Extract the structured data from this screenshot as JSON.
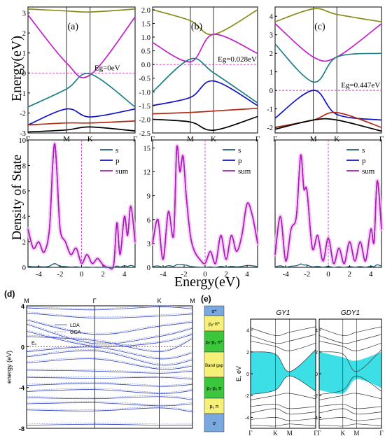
{
  "figure": {
    "ylabel_band": "Energy(eV)",
    "ylabel_dos": "Density of State",
    "xlabel_dos": "Energy(eV)"
  },
  "chart_data": [
    {
      "type": "line",
      "id": "a",
      "panel_label": "(a)",
      "kpoints": [
        "Γ",
        "M",
        "K",
        "Γ"
      ],
      "ylim": [
        -3,
        3.3
      ],
      "yticks": [
        "3",
        "2",
        "1",
        "0",
        "-1",
        "-2",
        "-3"
      ],
      "gap_label": "Eg=0eV",
      "series": [
        {
          "color": "#8b8b1a",
          "values": [
            3.2,
            3.1,
            3.05,
            3.2
          ]
        },
        {
          "color": "#c020c8",
          "values": [
            2.9,
            0.5,
            -0.1,
            2.8
          ]
        },
        {
          "color": "#1d7f86",
          "values": [
            -1.7,
            -0.8,
            -0.05,
            -1.7
          ]
        },
        {
          "color": "#1010c8",
          "values": [
            -2.6,
            -1.8,
            -2.2,
            -1.8
          ]
        },
        {
          "color": "#b02a10",
          "values": [
            -2.6,
            -2.5,
            -2.5,
            -2.4
          ]
        },
        {
          "color": "#000000",
          "values": [
            -2.95,
            -2.85,
            -2.7,
            -2.9
          ]
        }
      ]
    },
    {
      "type": "line",
      "id": "b",
      "panel_label": "(b)",
      "kpoints": [
        "Γ",
        "M",
        "K",
        "Γ"
      ],
      "ylim": [
        -2.5,
        2.1
      ],
      "yticks": [
        "2.0",
        "1.5",
        "1.0",
        "0.5",
        "0.0",
        "-0.5",
        "-1.0",
        "-1.5",
        "-2.0",
        "-2.5"
      ],
      "gap_label": "Eg=0.028eV",
      "series": [
        {
          "color": "#8b8b1a",
          "values": [
            2.0,
            1.6,
            1.1,
            2.0
          ]
        },
        {
          "color": "#c020c8",
          "values": [
            0.8,
            0.1,
            1.1,
            0.4
          ]
        },
        {
          "color": "#1d7f86",
          "values": [
            -1.0,
            0.2,
            -0.3,
            -1.4
          ]
        },
        {
          "color": "#1010c8",
          "values": [
            -1.5,
            -1.2,
            -0.6,
            -1.5
          ]
        },
        {
          "color": "#b02a10",
          "values": [
            -1.8,
            -1.75,
            -1.7,
            -1.6
          ]
        },
        {
          "color": "#000000",
          "values": [
            -2.0,
            -2.1,
            -2.4,
            -1.9
          ]
        }
      ]
    },
    {
      "type": "line",
      "id": "c",
      "panel_label": "(c)",
      "kpoints": [
        "Γ",
        "M",
        "K",
        "Γ"
      ],
      "ylim": [
        -2.3,
        4.5
      ],
      "yticks": [
        "4",
        "3",
        "2",
        "1",
        "0",
        "-1",
        "-2"
      ],
      "gap_label": "Eg=0.447eV",
      "series": [
        {
          "color": "#8b8b1a",
          "values": [
            3.7,
            4.4,
            4.1,
            3.7
          ]
        },
        {
          "color": "#c020c8",
          "values": [
            3.6,
            1.8,
            1.8,
            3.6
          ]
        },
        {
          "color": "#1d7f86",
          "values": [
            2.5,
            0.45,
            1.8,
            2.0
          ]
        },
        {
          "color": "#1010c8",
          "values": [
            -1.5,
            0.0,
            -1.3,
            -1.6
          ]
        },
        {
          "color": "#b02a10",
          "values": [
            -2.0,
            -1.6,
            -1.2,
            -2.0
          ]
        },
        {
          "color": "#000000",
          "values": [
            -2.1,
            -1.6,
            -1.6,
            -2.2
          ]
        }
      ]
    },
    {
      "type": "line",
      "id": "dos-a",
      "xlim": [
        -5,
        5
      ],
      "ylim": [
        0,
        10
      ],
      "xticks": [
        "-4",
        "-2",
        "0",
        "2",
        "4"
      ],
      "yticks": [
        "10",
        "8",
        "6",
        "4",
        "2",
        "0"
      ],
      "legend": [
        "s",
        "p",
        "sum"
      ],
      "x": [
        -5,
        -4.5,
        -4,
        -3.5,
        -3,
        -2.7,
        -2.5,
        -2.3,
        -2,
        -1.5,
        -1,
        -0.5,
        0,
        0.5,
        1,
        1.5,
        2,
        2.5,
        3,
        3.3,
        3.6,
        4,
        4.3,
        4.6,
        5
      ],
      "sum": [
        3.0,
        1.5,
        2.0,
        1.2,
        3.0,
        8.0,
        9.7,
        7.5,
        3.0,
        2.0,
        1.0,
        1.5,
        0.3,
        1.0,
        0.3,
        0.7,
        0.2,
        0.0,
        0.2,
        3.5,
        1.0,
        4.0,
        2.5,
        4.8,
        2.0
      ]
    },
    {
      "type": "line",
      "id": "dos-b",
      "xlim": [
        -5,
        5
      ],
      "ylim": [
        0,
        16
      ],
      "xticks": [
        "-4",
        "-2",
        "0",
        "2",
        "4"
      ],
      "yticks": [
        "15",
        "12",
        "9",
        "6",
        "3",
        "0"
      ],
      "legend": [
        "s",
        "p",
        "sum"
      ],
      "x": [
        -5,
        -4.5,
        -4,
        -3.5,
        -3,
        -2.7,
        -2.4,
        -2.1,
        -1.8,
        -1.4,
        -1,
        -0.5,
        0,
        0.5,
        1,
        1.5,
        2,
        2.5,
        3,
        3.5,
        4,
        4.5,
        5
      ],
      "sum": [
        3.0,
        6.0,
        1.0,
        7.0,
        4.0,
        15.0,
        12.0,
        14.0,
        9.0,
        4.0,
        2.0,
        1.0,
        0.5,
        2.0,
        0.5,
        4.0,
        1.0,
        4.0,
        2.0,
        4.0,
        8.0,
        6.5,
        3.0
      ]
    },
    {
      "type": "line",
      "id": "dos-c",
      "xlim": [
        -5,
        5
      ],
      "ylim": [
        0,
        10
      ],
      "xticks": [
        "-4",
        "-2",
        "0",
        "2",
        "4"
      ],
      "yticks": [],
      "legend": [
        "s",
        "p",
        "sum"
      ],
      "x": [
        -5,
        -4.5,
        -4,
        -3.5,
        -3,
        -2.6,
        -2.3,
        -2,
        -1.5,
        -1,
        -0.5,
        0,
        0.5,
        1,
        1.5,
        2,
        2.5,
        3,
        3.5,
        4,
        4.3,
        4.6,
        5
      ],
      "sum": [
        1.0,
        4.0,
        0.5,
        3.0,
        4.0,
        8.8,
        6.2,
        6.0,
        1.5,
        2.5,
        0.5,
        2.3,
        0.3,
        1.5,
        0.3,
        2.0,
        0.5,
        2.0,
        0.5,
        3.0,
        2.0,
        6.8,
        3.0
      ]
    },
    {
      "type": "line",
      "id": "d",
      "panel_label": "(d)",
      "kpoints": [
        "M",
        "Γ",
        "K",
        "M"
      ],
      "ylim": [
        -8,
        4
      ],
      "yticks": [
        "4",
        "0",
        "-4",
        "-8"
      ],
      "ylabel": "energy (eV)",
      "legend": [
        "LDA",
        "GGA"
      ],
      "fermi_label": "Eₓ"
    },
    {
      "type": "diagram",
      "id": "e",
      "panel_label": "(e)",
      "levels": [
        "σ*",
        "pᵧ-π*",
        "pₓ-pᵧ π*",
        "Band gap",
        "pₓ-pᵧ π",
        "pᵧ π",
        "σ"
      ]
    },
    {
      "type": "line",
      "id": "gy",
      "title": "GY1",
      "kpoints": [
        "Γ",
        "K",
        "M",
        "Γ"
      ],
      "ylabel": "E, eV",
      "ylim": [
        -5,
        5
      ],
      "yticks": [
        "4",
        "2",
        "0",
        "-2",
        "-4"
      ]
    },
    {
      "type": "line",
      "id": "gdy",
      "title": "GDY1",
      "kpoints": [
        "Γ",
        "K",
        "M",
        "Γ"
      ],
      "ylim": [
        -5,
        5
      ],
      "yticks": [
        "4",
        "2",
        "0",
        "-2",
        "-4"
      ]
    }
  ]
}
